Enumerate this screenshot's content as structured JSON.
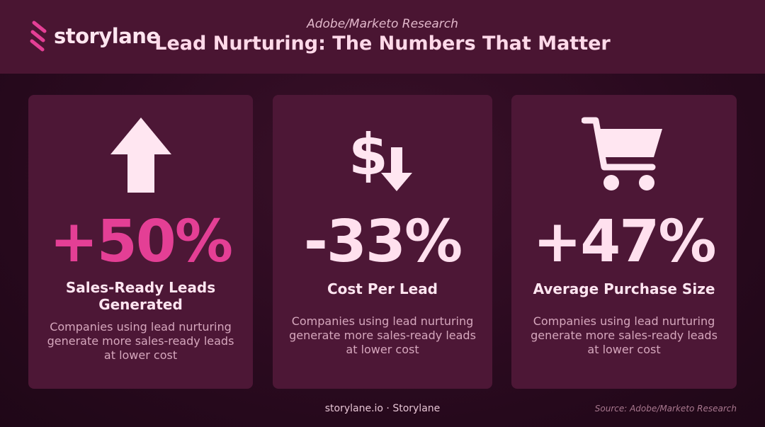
{
  "brand": {
    "logo_text": "storylane"
  },
  "header": {
    "eyebrow": "Adobe/Marketo Research",
    "title": "Lead Nurturing: The Numbers That Matter"
  },
  "cards": [
    {
      "icon": "arrow-up-icon",
      "stat": "+50%",
      "label": "Sales-Ready Leads Generated",
      "description": "Companies using lead nurturing generate more sales-ready leads at lower cost"
    },
    {
      "icon": "dollar-down-icon",
      "stat": "-33%",
      "label": "Cost Per Lead",
      "description": "Companies using lead nurturing generate more sales-ready leads at lower cost"
    },
    {
      "icon": "shopping-cart-icon",
      "stat": "+47%",
      "label": "Average Purchase Size",
      "description": "Companies using lead nurturing generate more sales-ready leads at lower cost"
    }
  ],
  "footer": {
    "center": "storylane.io · Storylane",
    "source": "Source: Adobe/Marketo Research"
  },
  "colors": {
    "background": "#2a0a1f",
    "header": "#4a1532",
    "card": "#4d1736",
    "accent_pink": "#e43f95",
    "text_light": "#ffe0ee"
  }
}
